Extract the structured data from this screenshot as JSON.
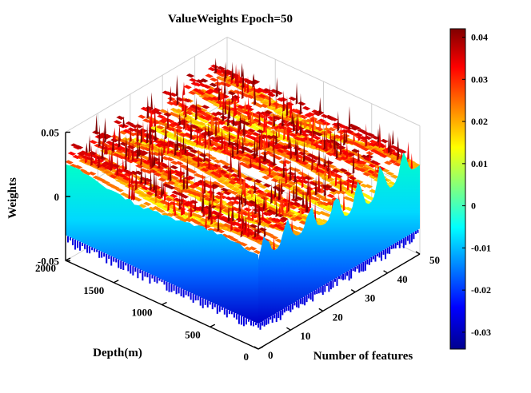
{
  "chart_data": {
    "type": "surface3d",
    "title": "ValueWeights  Epoch=50",
    "xlabel": "Number of features",
    "ylabel": "Depth(m)",
    "zlabel": "Weights",
    "x_range": [
      0,
      50
    ],
    "y_range": [
      0,
      2000
    ],
    "z_range": [
      -0.05,
      0.05
    ],
    "x_ticks": [
      "0",
      "10",
      "20",
      "30",
      "40",
      "50"
    ],
    "y_ticks": [
      "0",
      "500",
      "1000",
      "1500",
      "2000"
    ],
    "z_ticks": [
      "-0.05",
      "0",
      "0.05"
    ],
    "colorbar": {
      "min": -0.034,
      "max": 0.042,
      "ticks": [
        "0.04",
        "0.03",
        "0.02",
        "0.01",
        "0",
        "-0.01",
        "-0.02",
        "-0.03"
      ],
      "colormap": "jet"
    },
    "surface": {
      "ridge_features": [
        2,
        9,
        16,
        24,
        31,
        38,
        45
      ],
      "peak_value": 0.04,
      "base_value": -0.03,
      "edge_value": 0.01
    }
  }
}
